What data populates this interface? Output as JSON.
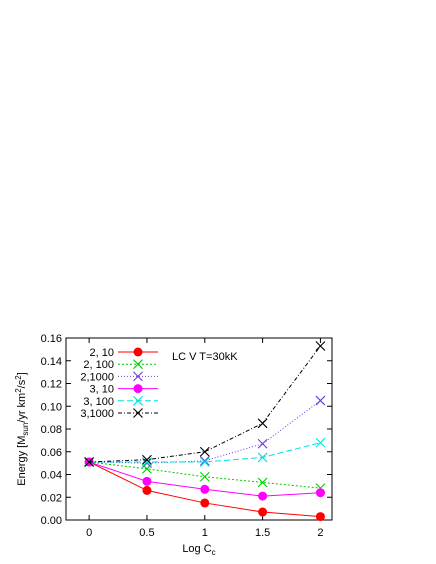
{
  "chart_data": {
    "type": "line",
    "x": [
      0,
      0.5,
      1,
      1.5,
      2
    ],
    "xlabel": "Log C",
    "xlabel_sub": "c",
    "ylabel_parts": [
      "Energy [M",
      "sun",
      "/yr km",
      "2",
      "/s",
      "2",
      "]"
    ],
    "xlim": [
      -0.2,
      2.1
    ],
    "ylim": [
      0,
      0.16
    ],
    "x_ticks": [
      0,
      0.5,
      1,
      1.5,
      2
    ],
    "x_tick_labels": [
      "0",
      "0.5",
      "1",
      "1.5",
      "2"
    ],
    "y_ticks": [
      0,
      0.02,
      0.04,
      0.06,
      0.08,
      0.1,
      0.12,
      0.14,
      0.16
    ],
    "y_tick_labels": [
      "0.00",
      "0.02",
      "0.04",
      "0.06",
      "0.08",
      "0.10",
      "0.12",
      "0.14",
      "0.16"
    ],
    "grid": false,
    "legend_position": "top-left",
    "annotation": "LC V T=30kK",
    "series": [
      {
        "name": "2,  10",
        "color": "#ff0000",
        "marker": "dot",
        "dash": "",
        "values": [
          0.051,
          0.026,
          0.015,
          0.007,
          0.003
        ]
      },
      {
        "name": "2, 100",
        "color": "#00cc00",
        "marker": "cross",
        "dash": "2,2",
        "values": [
          0.051,
          0.045,
          0.038,
          0.033,
          0.028
        ]
      },
      {
        "name": "2,1000",
        "color": "#6a3cdc",
        "marker": "cross",
        "dash": "1,2",
        "values": [
          0.051,
          0.05,
          0.052,
          0.067,
          0.105
        ]
      },
      {
        "name": "3,  10",
        "color": "#ff00ff",
        "marker": "dot",
        "dash": "",
        "values": [
          0.051,
          0.034,
          0.027,
          0.021,
          0.024
        ]
      },
      {
        "name": "3, 100",
        "color": "#00e0e0",
        "marker": "cross",
        "dash": "6,3",
        "values": [
          0.051,
          0.051,
          0.051,
          0.055,
          0.068
        ]
      },
      {
        "name": "3,1000",
        "color": "#000000",
        "marker": "cross",
        "dash": "4,2,1,2",
        "values": [
          0.051,
          0.053,
          0.06,
          0.085,
          0.153
        ]
      }
    ]
  }
}
